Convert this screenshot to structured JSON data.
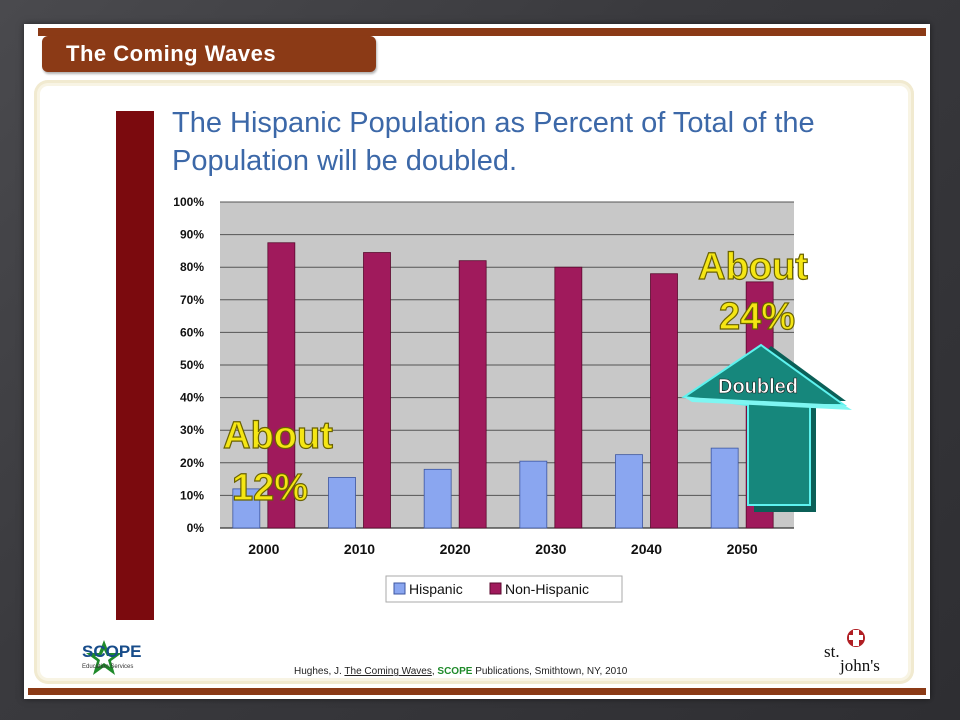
{
  "slide_title": "The Coming Waves",
  "heading": "The Hispanic Population as Percent of Total of the Population will be doubled.",
  "annotations": {
    "left_line1": "About",
    "left_line2": "12%",
    "right_line1": "About",
    "right_line2": "24%",
    "arrow_label": "Doubled"
  },
  "footer": {
    "citation_author": "Hughes, J. ",
    "citation_title": "The Coming Waves",
    "citation_sep": ", ",
    "citation_publisher": "SCOPE",
    "citation_rest": " Publications, Smithtown, NY, 2010",
    "scope_logo": "SCOPE",
    "scope_sub": "Education Services",
    "sj_logo_line1": "st.",
    "sj_logo_line2": "john's"
  },
  "colors": {
    "hispanic": "#8aa6f0",
    "non_hispanic": "#a01a5c",
    "plot_bg": "#c8c8c8",
    "annotation_text": "#f5e614",
    "arrow": "#16877c"
  },
  "chart_data": {
    "type": "bar",
    "categories": [
      "2000",
      "2010",
      "2020",
      "2030",
      "2040",
      "2050"
    ],
    "series": [
      {
        "name": "Hispanic",
        "values": [
          12,
          15.5,
          18,
          20.5,
          22.5,
          24.5
        ]
      },
      {
        "name": "Non-Hispanic",
        "values": [
          87.5,
          84.5,
          82,
          80,
          78,
          75.5
        ]
      }
    ],
    "yticks": [
      "0%",
      "10%",
      "20%",
      "30%",
      "40%",
      "50%",
      "60%",
      "70%",
      "80%",
      "90%",
      "100%"
    ],
    "ylim": [
      0,
      100
    ],
    "grid": true,
    "legend_position": "bottom"
  }
}
